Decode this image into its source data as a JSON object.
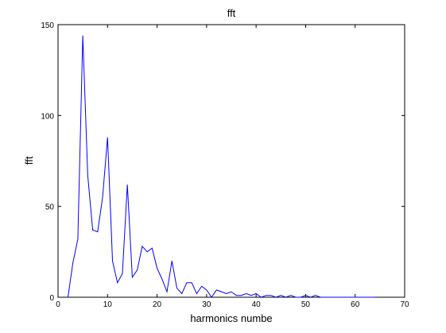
{
  "chart_data": {
    "type": "line",
    "title": "fft",
    "xlabel": "harmonics numbe",
    "ylabel": "fft",
    "xlim": [
      0,
      70
    ],
    "ylim": [
      0,
      150
    ],
    "x_ticks": [
      0,
      10,
      20,
      30,
      40,
      50,
      60,
      70
    ],
    "y_ticks": [
      0,
      50,
      100,
      150
    ],
    "x_tick_labels": [
      "0",
      "10",
      "20",
      "30",
      "40",
      "50",
      "60",
      "70"
    ],
    "y_tick_labels": [
      "0",
      "50",
      "100",
      "150"
    ],
    "grid": false,
    "legend": "none",
    "series": [
      {
        "color": "#0000ff",
        "x": [
          2,
          3,
          4,
          5,
          6,
          7,
          8,
          9,
          10,
          11,
          12,
          13,
          14,
          15,
          16,
          17,
          18,
          19,
          20,
          21,
          22,
          23,
          24,
          25,
          26,
          27,
          28,
          29,
          30,
          31,
          32,
          33,
          34,
          35,
          36,
          37,
          38,
          39,
          40,
          41,
          42,
          43,
          44,
          45,
          46,
          47,
          48,
          49,
          50,
          51,
          52,
          53,
          54,
          55,
          56,
          57,
          58,
          59,
          60,
          61,
          62,
          63,
          64
        ],
        "values": [
          0,
          19,
          32,
          144,
          67,
          37,
          36,
          55,
          88,
          20,
          8,
          13,
          62,
          11,
          15,
          28,
          25,
          27,
          16,
          10,
          3,
          20,
          5,
          2,
          8,
          8,
          2,
          6,
          4,
          0,
          4,
          3,
          2,
          3,
          1,
          1,
          2,
          1,
          2,
          0,
          1,
          1,
          0,
          1,
          0,
          1,
          0,
          0,
          1,
          0,
          1,
          0,
          0,
          0,
          0,
          0,
          0,
          0,
          0,
          0,
          0,
          0,
          0
        ]
      }
    ]
  }
}
